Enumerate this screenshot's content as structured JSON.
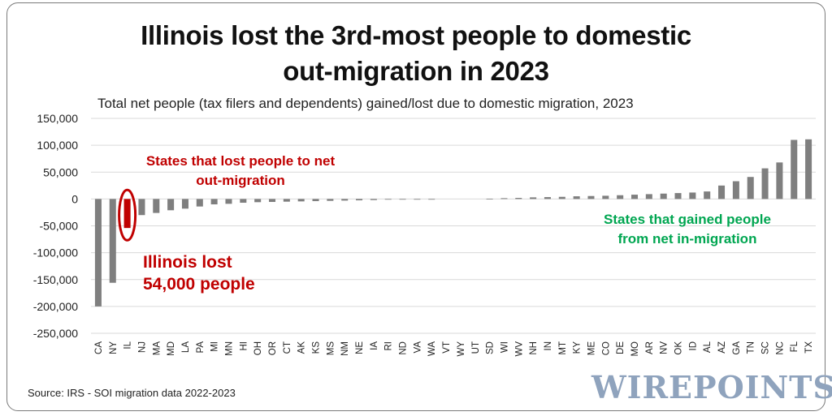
{
  "title_line1": "Illinois lost the 3rd-most people to domestic",
  "title_line2": "out-migration in 2023",
  "subtitle": "Total net people (tax filers and dependents) gained/lost due to domestic migration, 2023",
  "source": "Source: IRS - SOI migration data 2022-2023",
  "brand": "WIREPOINTS",
  "colors": {
    "bar": "#7f7f7f",
    "highlight": "#c00000",
    "loss_text": "#c00000",
    "gain_text": "#00a651",
    "grid": "#d9d9d9"
  },
  "chart_data": {
    "type": "bar",
    "title": "Illinois lost the 3rd-most people to domestic out-migration in 2023",
    "ylabel": "",
    "xlabel": "",
    "ylim": [
      -250000,
      150000
    ],
    "yticks": [
      150000,
      100000,
      50000,
      0,
      -50000,
      -100000,
      -150000,
      -200000,
      -250000
    ],
    "ytick_labels": [
      "150,000",
      "100,000",
      "50,000",
      "0",
      "-50,000",
      "-100,000",
      "-150,000",
      "-200,000",
      "-250,000"
    ],
    "categories": [
      "CA",
      "NY",
      "IL",
      "NJ",
      "MA",
      "MD",
      "LA",
      "PA",
      "MI",
      "MN",
      "HI",
      "OH",
      "OR",
      "CT",
      "AK",
      "KS",
      "MS",
      "NM",
      "NE",
      "IA",
      "RI",
      "ND",
      "VA",
      "WA",
      "VT",
      "WY",
      "UT",
      "SD",
      "WI",
      "WV",
      "NH",
      "IN",
      "MT",
      "KY",
      "ME",
      "CO",
      "DE",
      "MO",
      "AR",
      "NV",
      "OK",
      "ID",
      "AL",
      "AZ",
      "GA",
      "TN",
      "SC",
      "NC",
      "FL",
      "TX"
    ],
    "values": [
      -200000,
      -156000,
      -54000,
      -30000,
      -26000,
      -21000,
      -18000,
      -14000,
      -10000,
      -9000,
      -7000,
      -6000,
      -5500,
      -5000,
      -4500,
      -4000,
      -3500,
      -3000,
      -2500,
      -2000,
      -500,
      -300,
      -200,
      -100,
      0,
      0,
      0,
      500,
      1500,
      2000,
      3000,
      3500,
      4000,
      5000,
      5500,
      6000,
      7000,
      8000,
      9000,
      10000,
      11000,
      12000,
      14000,
      25000,
      33000,
      41000,
      57000,
      68000,
      110000,
      111000
    ],
    "highlight_category": "IL",
    "annotations": [
      {
        "text": "States that lost people to net out-migration",
        "lines": [
          "States that lost people to net",
          "out-migration"
        ],
        "color": "#c00000"
      },
      {
        "text": "Illinois lost 54,000 people",
        "lines": [
          "Illinois lost",
          "54,000 people"
        ],
        "color": "#c00000"
      },
      {
        "text": "States that gained people from net in-migration",
        "lines": [
          "States that gained people",
          "from net in-migration"
        ],
        "color": "#00a651"
      }
    ]
  }
}
